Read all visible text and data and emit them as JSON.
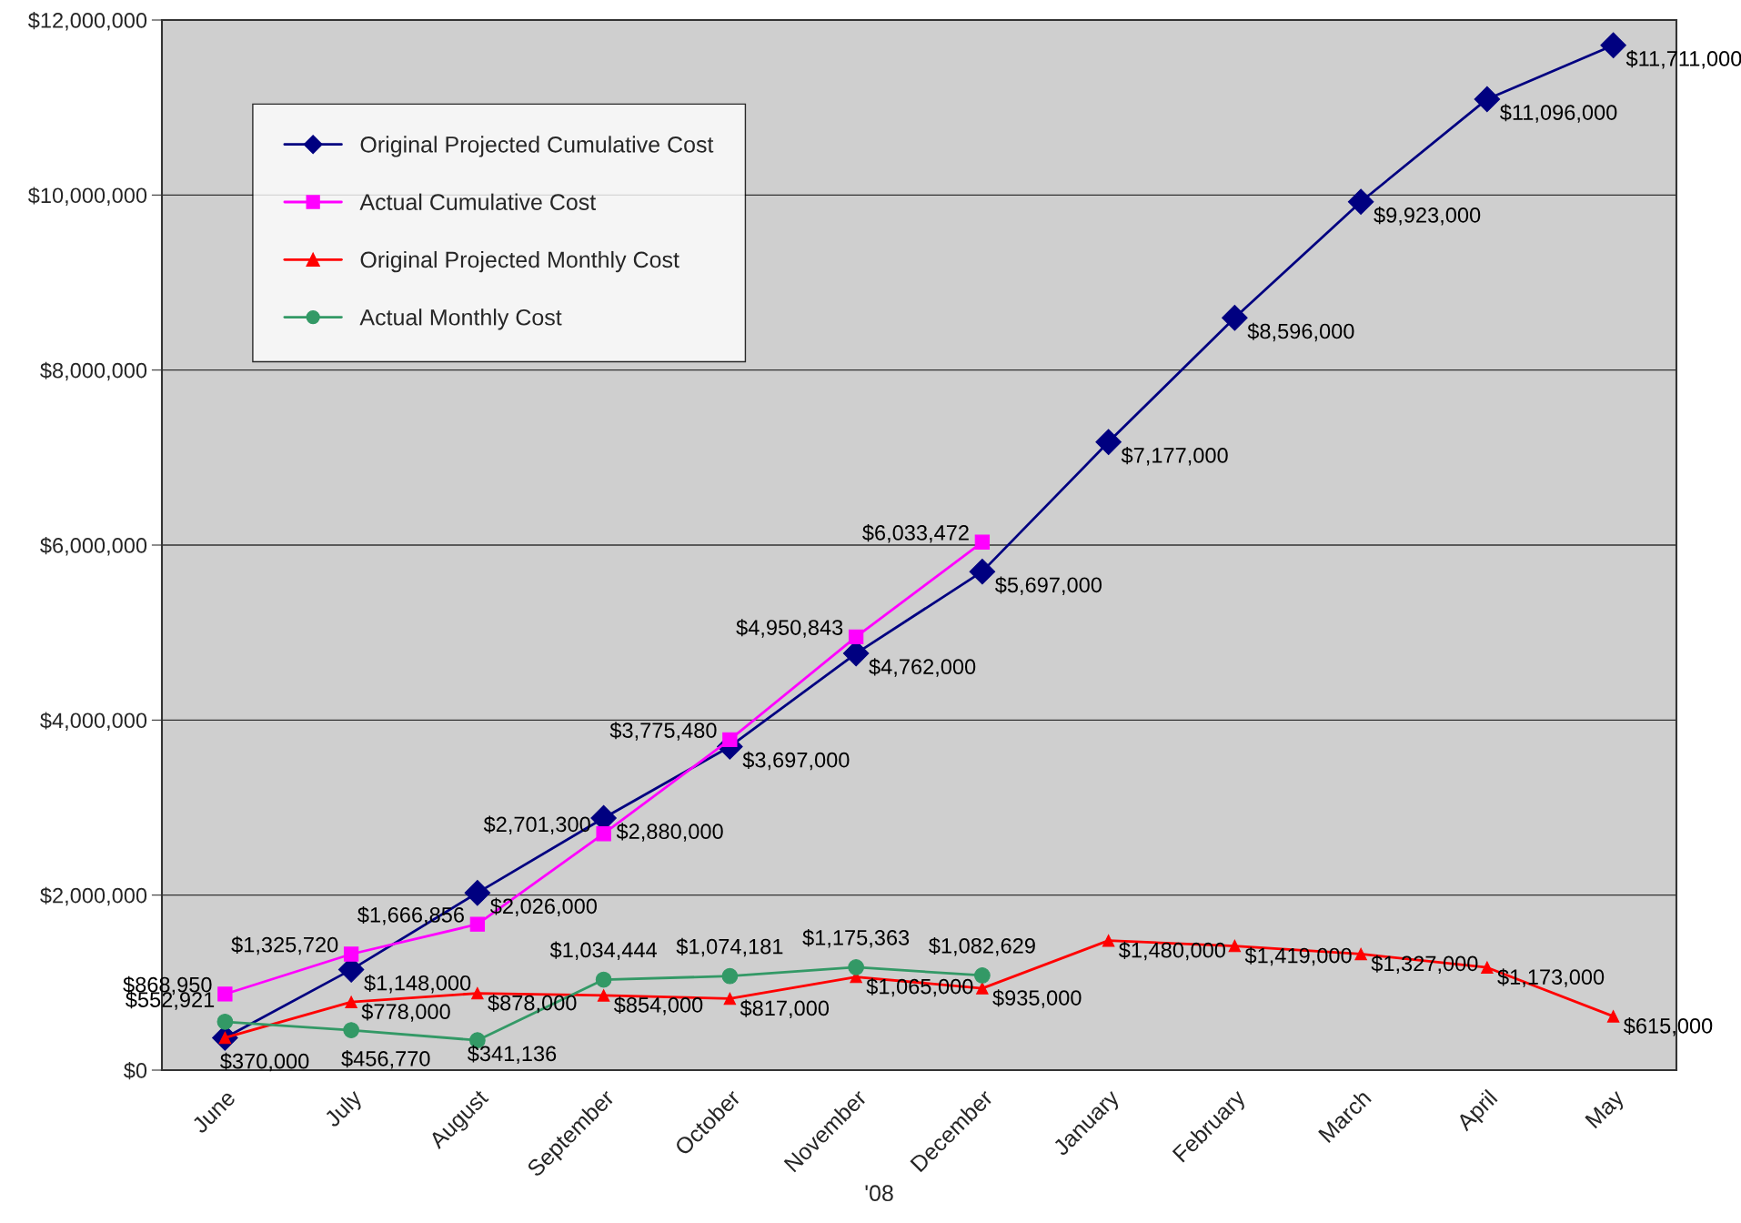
{
  "chart_data": {
    "type": "line",
    "categories": [
      "June",
      "July",
      "August",
      "September",
      "October",
      "November",
      "December",
      "January",
      "February",
      "March",
      "April",
      "May"
    ],
    "series": [
      {
        "name": "Original Projected Cumulative Cost",
        "color": "#000080",
        "marker": "diamond",
        "values": [
          370000,
          1148000,
          2026000,
          2880000,
          3697000,
          4762000,
          5697000,
          7177000,
          8596000,
          9923000,
          11096000,
          11711000
        ],
        "value_labels": [
          null,
          "$1,148,000",
          "$2,026,000",
          "$2,880,000",
          "$3,697,000",
          "$4,762,000",
          "$5,697,000",
          "$7,177,000",
          "$8,596,000",
          "$9,923,000",
          "$11,096,000",
          "$11,711,000"
        ]
      },
      {
        "name": "Actual Cumulative Cost",
        "color": "#ff00ff",
        "marker": "square",
        "values": [
          868950,
          1325720,
          1666856,
          2701300,
          3775480,
          4950843,
          6033472,
          null,
          null,
          null,
          null,
          null
        ],
        "value_labels": [
          "$868,950",
          "$1,325,720",
          "$1,666,856",
          "$2,701,300",
          "$3,775,480",
          "$4,950,843",
          "$6,033,472",
          null,
          null,
          null,
          null,
          null
        ]
      },
      {
        "name": "Original Projected Monthly Cost",
        "color": "#ff0000",
        "marker": "triangle",
        "values": [
          370000,
          778000,
          878000,
          854000,
          817000,
          1065000,
          935000,
          1480000,
          1419000,
          1327000,
          1173000,
          615000
        ],
        "value_labels": [
          "$370,000",
          "$778,000",
          "$878,000",
          "$854,000",
          "$817,000",
          "$1,065,000",
          "$935,000",
          "$1,480,000",
          "$1,419,000",
          "$1,327,000",
          "$1,173,000",
          "$615,000"
        ]
      },
      {
        "name": "Actual Monthly Cost",
        "color": "#339966",
        "marker": "circle",
        "values": [
          552921,
          456770,
          341136,
          1034444,
          1074181,
          1175363,
          1082629,
          null,
          null,
          null,
          null,
          null
        ],
        "value_labels": [
          "$552,921",
          "$456,770",
          "$341,136",
          "$1,034,444",
          "$1,074,181",
          "$1,175,363",
          "$1,082,629",
          null,
          null,
          null,
          null,
          null
        ]
      }
    ],
    "ylim": [
      0,
      12000000
    ],
    "yticks": [
      {
        "value": 0,
        "label": "$0"
      },
      {
        "value": 2000000,
        "label": "$2,000,000"
      },
      {
        "value": 4000000,
        "label": "$4,000,000"
      },
      {
        "value": 6000000,
        "label": "$6,000,000"
      },
      {
        "value": 8000000,
        "label": "$8,000,000"
      },
      {
        "value": 10000000,
        "label": "$10,000,000"
      },
      {
        "value": 12000000,
        "label": "$12,000,000"
      }
    ],
    "grid": "y",
    "legend": "top left",
    "line_style": "solid",
    "annotations": [
      "'08"
    ]
  }
}
